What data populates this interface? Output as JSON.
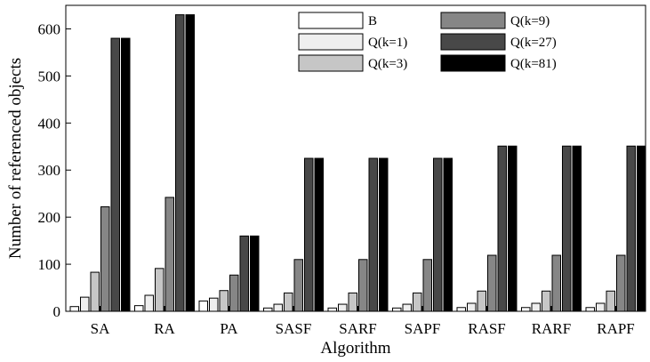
{
  "chart_data": {
    "type": "bar",
    "xlabel": "Algorithm",
    "ylabel": "Number of referenced objects",
    "ylim": [
      0,
      650
    ],
    "yticks": [
      0,
      100,
      200,
      300,
      400,
      500,
      600
    ],
    "grid": false,
    "legend_position": "top-right",
    "categories": [
      "SA",
      "RA",
      "PA",
      "SASF",
      "SARF",
      "SAPF",
      "RASF",
      "RARF",
      "RAPF"
    ],
    "series": [
      {
        "name": "B",
        "color": "#ffffff",
        "values": [
          10,
          12,
          22,
          7,
          7,
          7,
          8,
          8,
          8
        ]
      },
      {
        "name": "Q(k=1)",
        "color": "#efefef",
        "values": [
          30,
          34,
          28,
          15,
          15,
          15,
          17,
          17,
          17
        ]
      },
      {
        "name": "Q(k=3)",
        "color": "#c6c6c6",
        "values": [
          83,
          91,
          44,
          39,
          39,
          39,
          43,
          43,
          43
        ]
      },
      {
        "name": "Q(k=9)",
        "color": "#868686",
        "values": [
          222,
          242,
          77,
          110,
          110,
          110,
          119,
          119,
          119
        ]
      },
      {
        "name": "Q(k=27)",
        "color": "#484848",
        "values": [
          580,
          630,
          160,
          325,
          325,
          325,
          351,
          351,
          351
        ]
      },
      {
        "name": "Q(k=81)",
        "color": "#000000",
        "values": [
          580,
          630,
          160,
          325,
          325,
          325,
          351,
          351,
          351
        ]
      }
    ]
  }
}
